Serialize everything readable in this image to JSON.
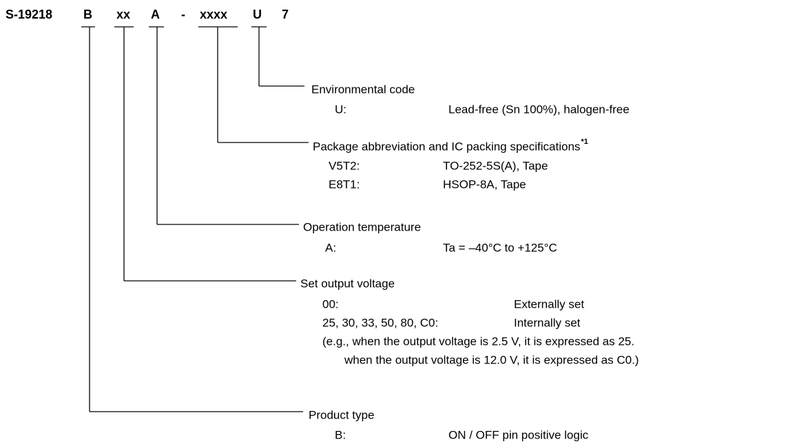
{
  "part_number": {
    "segments": [
      "S-19218",
      "B",
      "xx",
      "A",
      "-",
      "xxxx",
      "U",
      "7"
    ]
  },
  "sections": [
    {
      "label": "Environmental code",
      "items": [
        {
          "code": "U:",
          "description": "Lead-free (Sn 100%), halogen-free"
        }
      ]
    },
    {
      "label": "Package abbreviation and IC packing specifications",
      "superscript": "*1",
      "items": [
        {
          "code": "V5T2:",
          "description": "TO-252-5S(A), Tape"
        },
        {
          "code": "E8T1:",
          "description": "HSOP-8A, Tape"
        }
      ]
    },
    {
      "label": "Operation temperature",
      "items": [
        {
          "code": "A:",
          "description": "Ta = –40°C to +125°C"
        }
      ]
    },
    {
      "label": "Set output voltage",
      "items": [
        {
          "code": "00:",
          "description": "Externally set"
        },
        {
          "code": "25, 30, 33, 50, 80, C0:",
          "description": "Internally set"
        }
      ],
      "notes": [
        "(e.g., when the output voltage is 2.5 V, it is expressed as 25.",
        "when the output voltage is 12.0 V, it is expressed as C0.)"
      ]
    },
    {
      "label": "Product type",
      "items": [
        {
          "code": "B:",
          "description": "ON / OFF pin positive logic"
        }
      ]
    }
  ]
}
